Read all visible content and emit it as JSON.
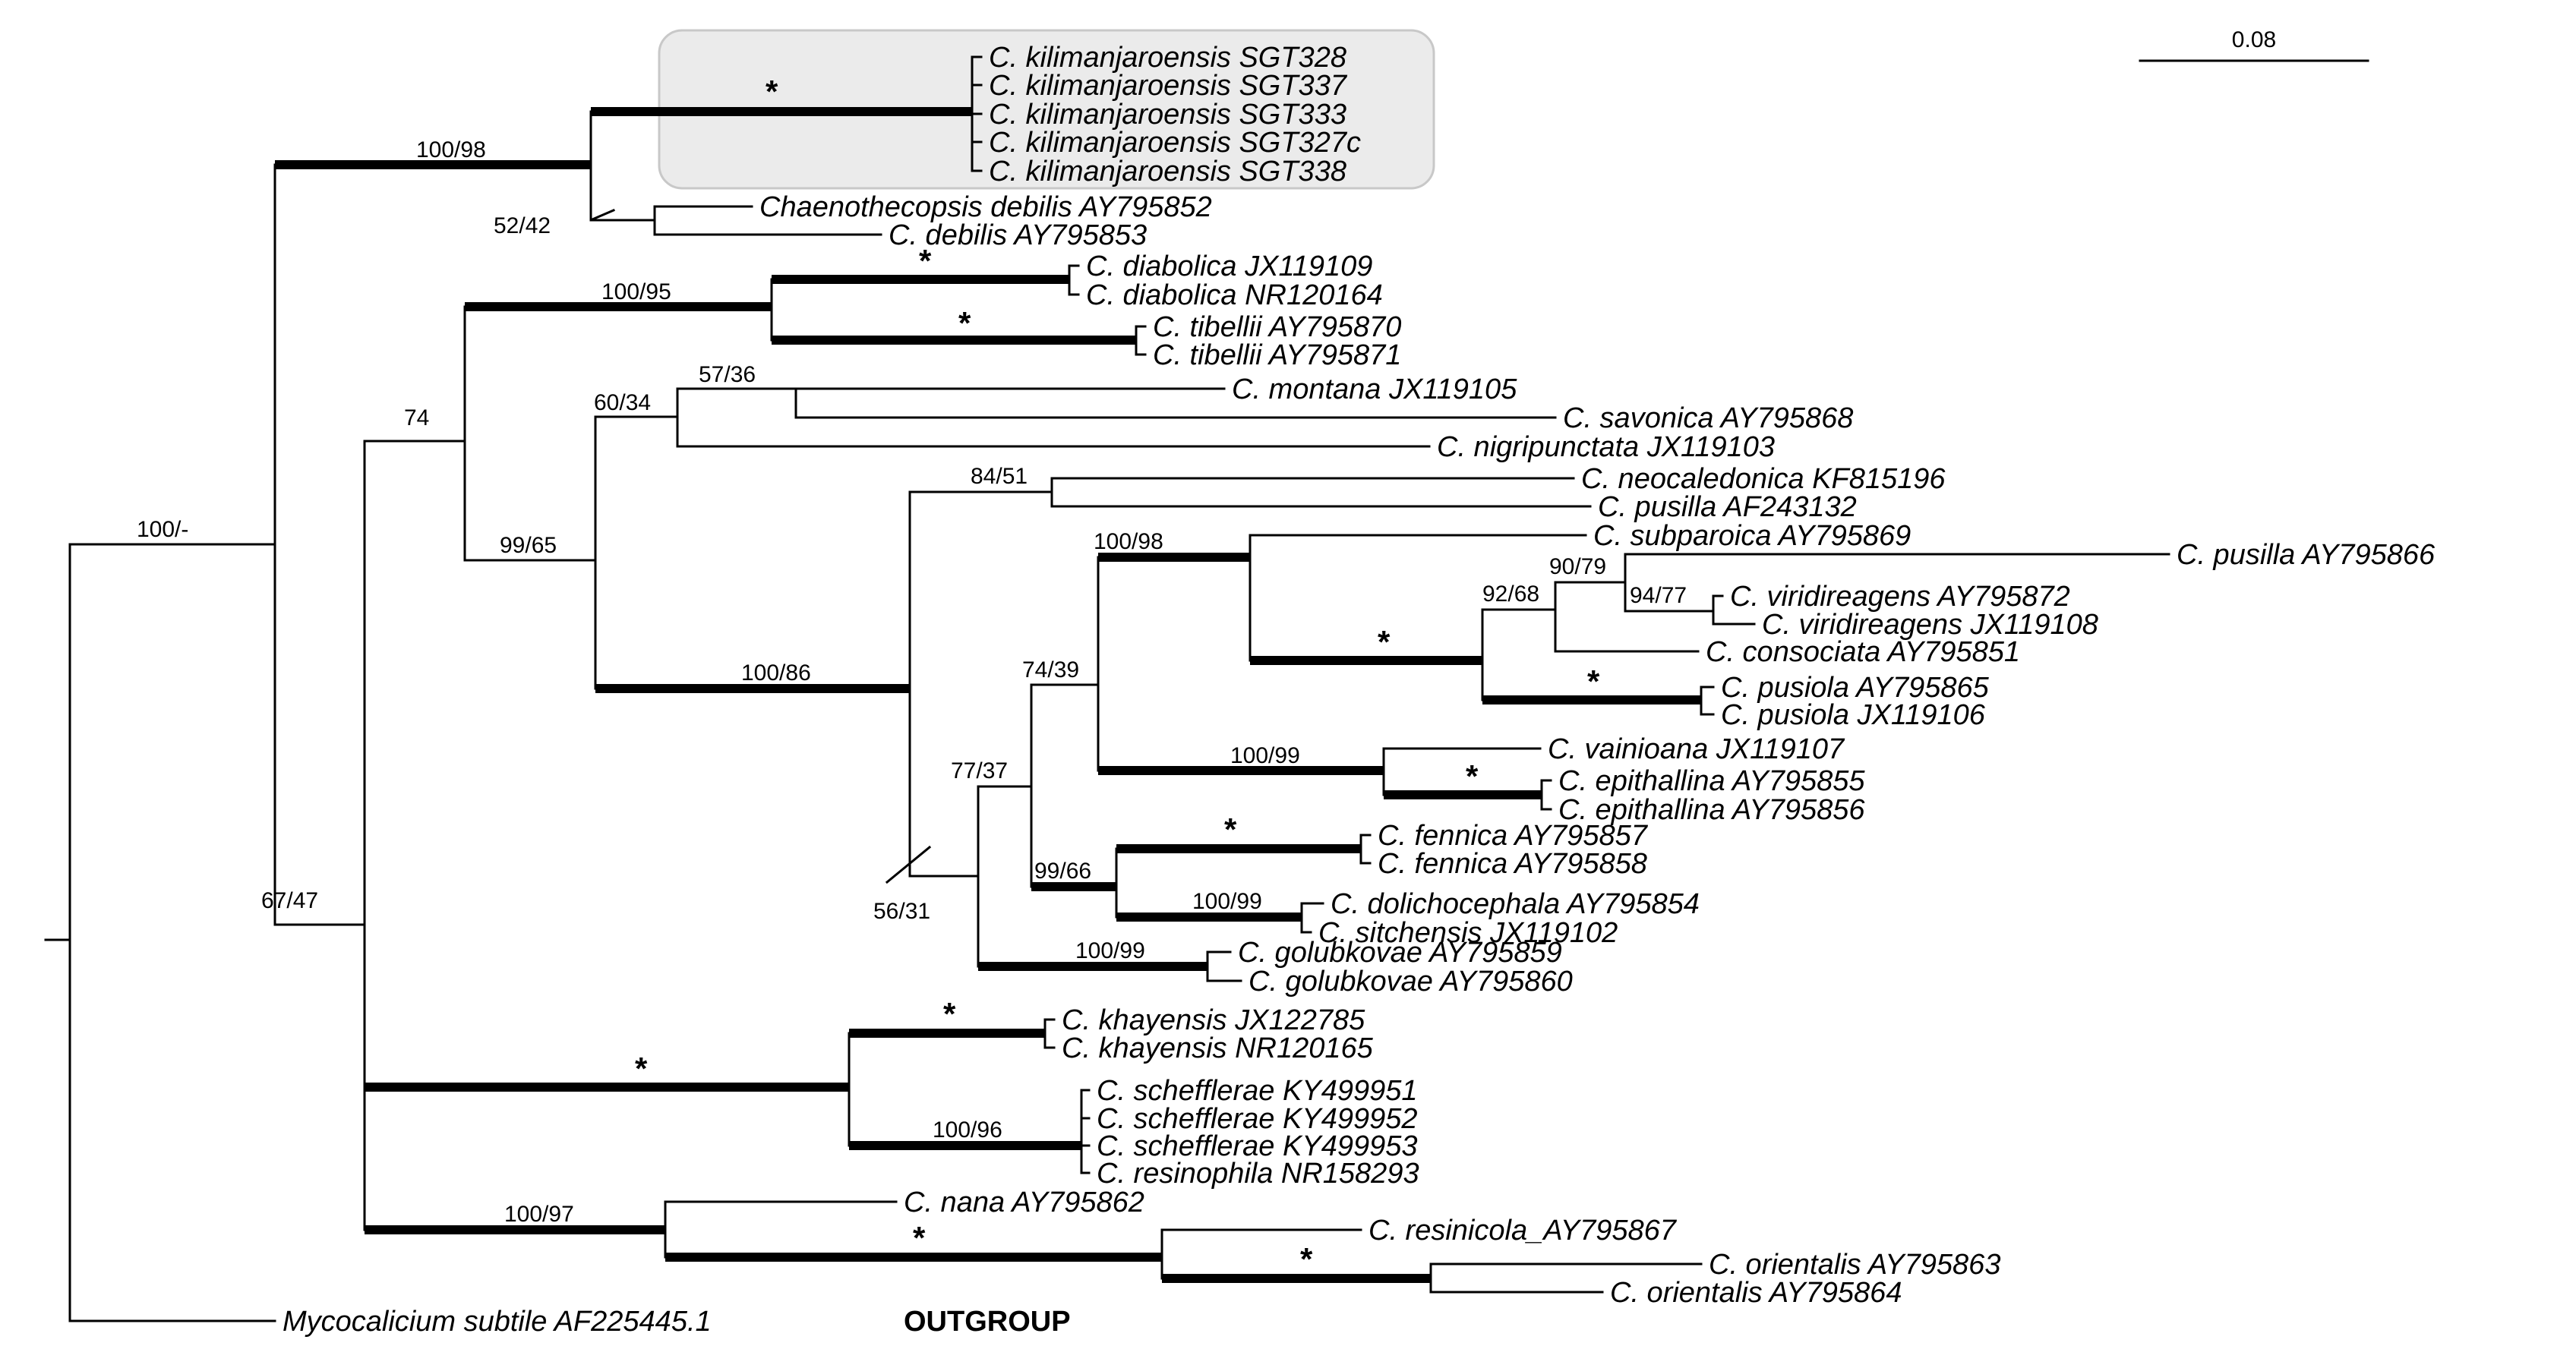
{
  "tips": {
    "kil328": "C. kilimanjaroensis SGT328",
    "kil337": "C. kilimanjaroensis SGT337",
    "kil333": "C. kilimanjaroensis SGT333",
    "kil327c": "C. kilimanjaroensis SGT327c",
    "kil338": "C. kilimanjaroensis SGT338",
    "chdeb": "Chaenothecopsis debilis AY795852",
    "cdeb": "C. debilis AY795853",
    "dia1": "C. diabolica JX119109",
    "dia2": "C. diabolica NR120164",
    "tib1": "C. tibellii AY795870",
    "tib2": "C. tibellii AY795871",
    "mon": "C. montana JX119105",
    "sav": "C. savonica AY795868",
    "nig": "C. nigripunctata JX119103",
    "neo": "C. neocaledonica KF815196",
    "pus1": "C. pusilla AF243132",
    "sub": "C. subparoica AY795869",
    "pus2": "C. pusilla AY795866",
    "vir1": "C. viridireagens AY795872",
    "vir2": "C. viridireagens JX119108",
    "con": "C. consociata AY795851",
    "psl1": "C. pusiola AY795865",
    "psl2": "C. pusiola JX119106",
    "vai": "C. vainioana JX119107",
    "epi1": "C. epithallina AY795855",
    "epi2": "C. epithallina AY795856",
    "fen1": "C. fennica AY795857",
    "fen2": "C. fennica AY795858",
    "dol": "C. dolichocephala AY795854",
    "sit": "C. sitchensis JX119102",
    "gol1": "C. golubkovae AY795859",
    "gol2": "C. golubkovae AY795860",
    "kha1": "C. khayensis JX122785",
    "kha2": "C. khayensis NR120165",
    "sch1": "C. schefflerae KY499951",
    "sch2": "C. schefflerae KY499952",
    "sch3": "C. schefflerae KY499953",
    "res": "C. resinophila NR158293",
    "nana": "C. nana AY795862",
    "resi": "C. resinicola_AY795867",
    "ori1": "C. orientalis AY795863",
    "ori2": "C. orientalis AY795864",
    "myco": "Mycocalicium subtile AF225445.1"
  },
  "outgroup_label": "OUTGROUP",
  "scale_label": "0.08",
  "supports": {
    "kilclade": "*",
    "n100_98a": "100/98",
    "n52_42": "52/42",
    "diaclade": "*",
    "n100_95": "100/95",
    "tibclade": "*",
    "n74": "74",
    "n57_36": "57/36",
    "n60_34": "60/34",
    "n84_51": "84/51",
    "n100_m": "100/-",
    "n99_65": "99/65",
    "n100_98b": "100/98",
    "n90_79": "90/79",
    "n94_77": "94/77",
    "n92_68": "92/68",
    "vircon": "*",
    "pslclade": "*",
    "n74_39": "74/39",
    "n100_86": "100/86",
    "n100_99a": "100/99",
    "epiclade": "*",
    "n77_37": "77/37",
    "fenclade": "*",
    "n99_66": "99/66",
    "n100_99b": "100/99",
    "n56_31": "56/31",
    "n100_99c": "100/99",
    "n67_47": "67/47",
    "khaclade": "*",
    "big": "*",
    "n100_96": "100/96",
    "n100_97": "100/97",
    "resori": "*",
    "oriclade": "*"
  }
}
